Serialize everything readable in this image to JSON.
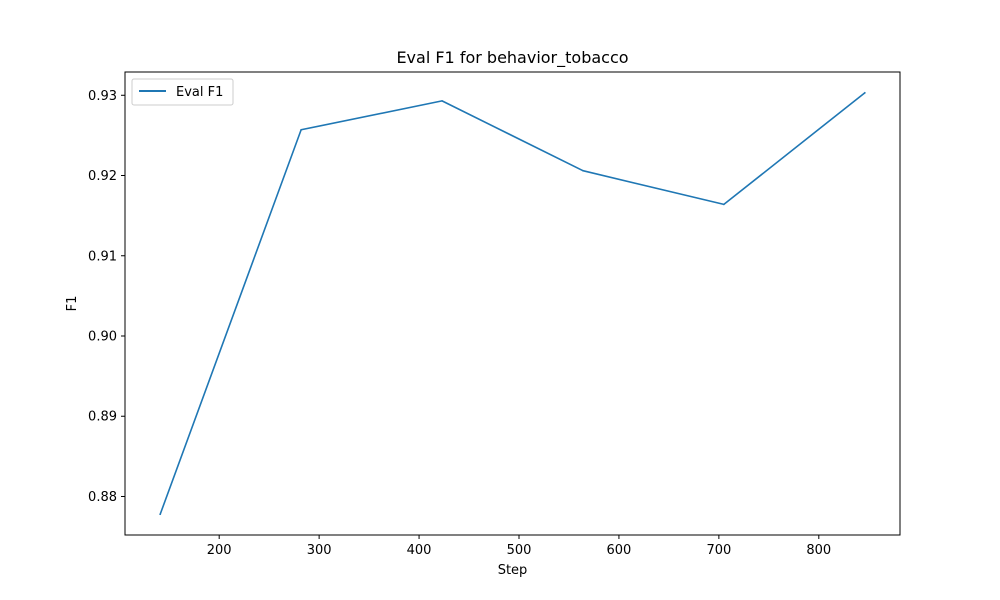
{
  "chart_data": {
    "type": "line",
    "title": "Eval F1 for behavior_tobacco",
    "xlabel": "Step",
    "ylabel": "F1",
    "x": [
      141,
      282,
      423,
      564,
      705,
      846
    ],
    "series": [
      {
        "name": "Eval F1",
        "color": "#1f77b4",
        "values": [
          0.8778,
          0.9257,
          0.9293,
          0.9206,
          0.9164,
          0.9303
        ]
      }
    ],
    "xlim": [
      105.75,
      881.25
    ],
    "ylim": [
      0.8752,
      0.9329
    ],
    "xticks": [
      200,
      300,
      400,
      500,
      600,
      700,
      800
    ],
    "xtick_labels": [
      "200",
      "300",
      "400",
      "500",
      "600",
      "700",
      "800"
    ],
    "yticks": [
      0.88,
      0.89,
      0.9,
      0.91,
      0.92,
      0.93
    ],
    "ytick_labels": [
      "0.88",
      "0.89",
      "0.90",
      "0.91",
      "0.92",
      "0.93"
    ],
    "legend_position": "top-left",
    "grid": false
  }
}
